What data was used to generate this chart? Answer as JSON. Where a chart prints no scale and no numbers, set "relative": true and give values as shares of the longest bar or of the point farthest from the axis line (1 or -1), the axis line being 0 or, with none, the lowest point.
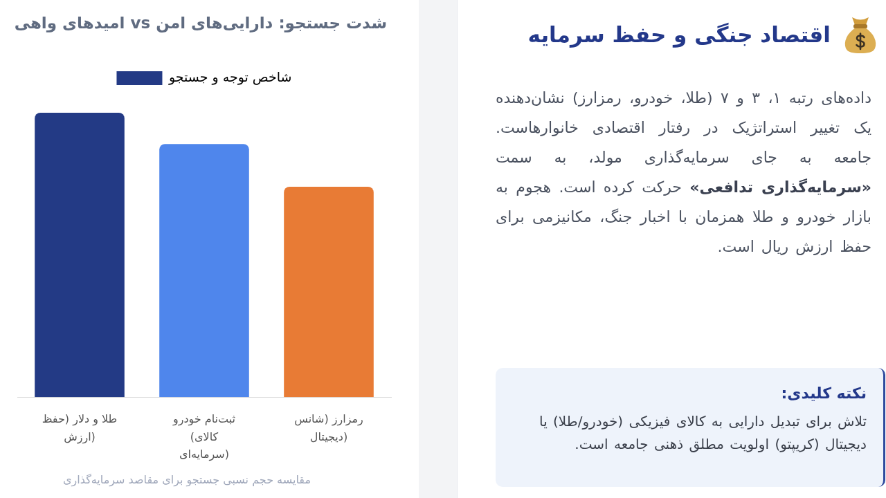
{
  "chart_data": [
    {
      "type": "other",
      "title": "اقتصاد جنگی و حفظ سرمایه",
      "annotations": [
        "داده‌های رتبه ۱، ۳ و ۷ (طلا، خودرو، رمزارز) نشان‌دهنده یک تغییر استراتژیک در رفتار اقتصادی خانوارهاست. جامعه به جای سرمایه‌گذاری مولد، به سمت «سرمایه‌گذاری تدافعی» حرکت کرده است. هجوم به بازار خودرو و طلا همزمان با اخبار جنگ، مکانیزمی برای حفظ ارزش ریال است.",
        "نکته کلیدی:",
        "تلاش برای تبدیل دارایی به کالای فیزیکی (خودرو/طلا) یا دیجیتال (کریپتو) اولویت مطلق ذهنی جامعه است."
      ]
    },
    {
      "type": "bar",
      "title": "شدت جستجو: دارایی‌های امن vs امیدهای واهی",
      "categories": [
        "طلا و دلار (حفظ ارزش)",
        "ثبت‌نام خودرو (کالای سرمایه‌ای)",
        "رمزارز (شانس دیجیتال)"
      ],
      "series": [
        {
          "name": "شاخص توجه و جستجو",
          "color": "#233a85",
          "colors": [
            "#233a85",
            "#4f86ec",
            "#e87b35"
          ],
          "values": [
            1,
            0.89,
            0.74
          ]
        }
      ],
      "relative": true,
      "legend": "top",
      "annotations": [
        "مقایسه حجم نسبی جستجو برای مقاصد سرمایه‌گذاری"
      ]
    }
  ]
}
